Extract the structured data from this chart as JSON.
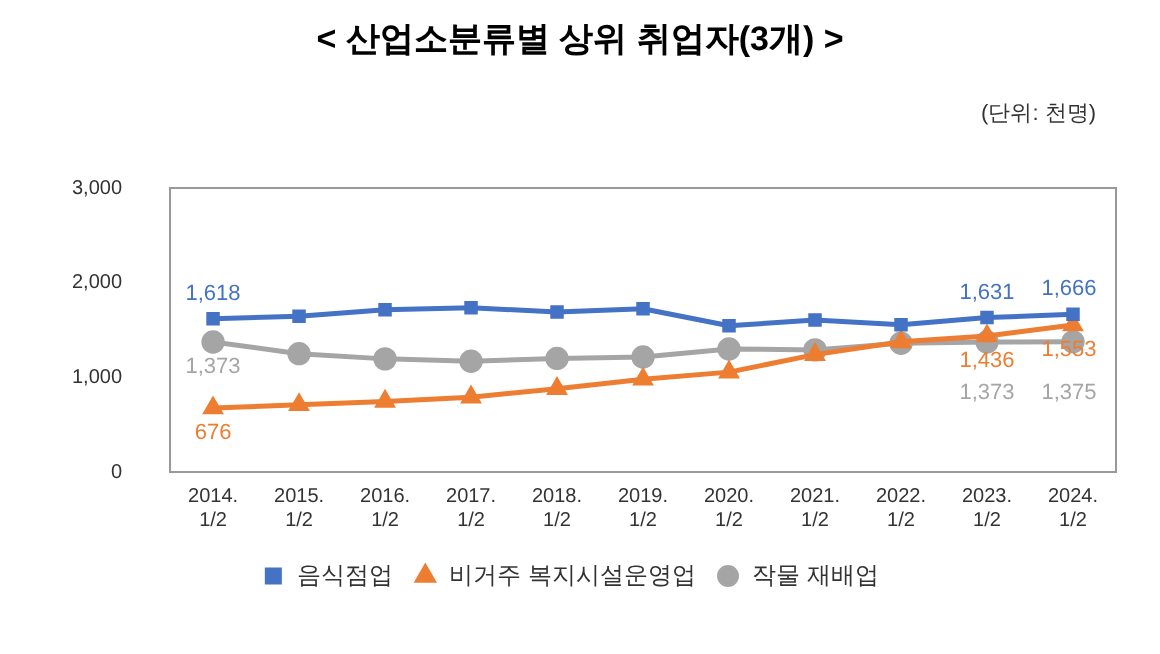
{
  "chart_data": {
    "type": "line",
    "title": "< 산업소분류별 상위 취업자(3개) >",
    "annotations": [
      "(단위: 천명)"
    ],
    "categories": [
      "2014. 1/2",
      "2015. 1/2",
      "2016. 1/2",
      "2017. 1/2",
      "2018. 1/2",
      "2019. 1/2",
      "2020. 1/2",
      "2021. 1/2",
      "2022. 1/2",
      "2023. 1/2",
      "2024. 1/2"
    ],
    "series": [
      {
        "name": "음식점업",
        "color": "#4472c4",
        "marker": "square",
        "values": [
          1618,
          1645,
          1715,
          1735,
          1690,
          1725,
          1545,
          1605,
          1555,
          1631,
          1666
        ],
        "value_labels": [
          "1,618",
          null,
          null,
          null,
          null,
          null,
          null,
          null,
          null,
          "1,631",
          "1,666"
        ]
      },
      {
        "name": "비거주 복지시설운영업",
        "color": "#ed7d31",
        "marker": "triangle",
        "values": [
          676,
          710,
          745,
          790,
          880,
          980,
          1055,
          1240,
          1375,
          1436,
          1553
        ],
        "value_labels": [
          "676",
          null,
          null,
          null,
          null,
          null,
          null,
          null,
          null,
          "1,436",
          "1,553"
        ]
      },
      {
        "name": "작물 재배업",
        "color": "#a5a5a5",
        "marker": "circle",
        "values": [
          1373,
          1250,
          1195,
          1170,
          1200,
          1215,
          1300,
          1290,
          1360,
          1373,
          1375
        ],
        "value_labels": [
          "1,373",
          null,
          null,
          null,
          null,
          null,
          null,
          null,
          null,
          "1,373",
          "1,375"
        ]
      }
    ],
    "ylim": [
      0,
      3000
    ],
    "yticks": [
      {
        "value": 0,
        "label": "0"
      },
      {
        "value": 1000,
        "label": "1,000"
      },
      {
        "value": 2000,
        "label": "2,000"
      },
      {
        "value": 3000,
        "label": "3,000"
      }
    ],
    "grid": false,
    "legend": "bottom"
  }
}
